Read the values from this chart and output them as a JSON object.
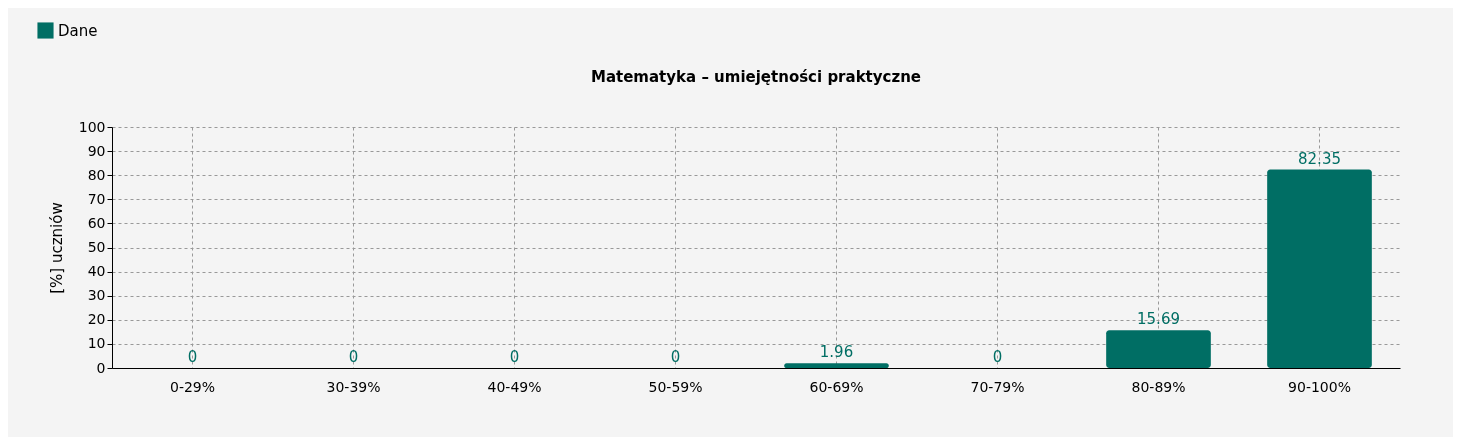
{
  "chart_data": {
    "type": "bar",
    "title": "Matematyka – umiejętności praktyczne",
    "ylabel": "[%] uczniów",
    "categories": [
      "0-29%",
      "30-39%",
      "40-49%",
      "50-59%",
      "60-69%",
      "70-79%",
      "80-89%",
      "90-100%"
    ],
    "series": [
      {
        "name": "Dane",
        "color": "#006e64",
        "values": [
          0,
          0,
          0,
          0,
          1.96,
          0,
          15.69,
          82.35
        ]
      }
    ],
    "ylim": [
      0,
      100
    ],
    "yticks": [
      0,
      10,
      20,
      30,
      40,
      50,
      60,
      70,
      80,
      90,
      100
    ],
    "grid": true,
    "legend": "top left",
    "data_labels": true
  }
}
